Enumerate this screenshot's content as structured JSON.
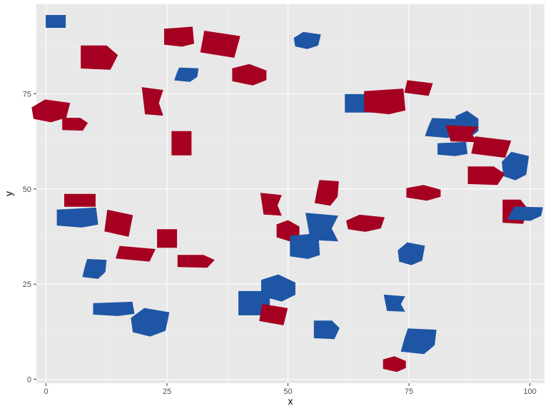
{
  "chart_data": {
    "type": "scatter",
    "marker": "us-state-shapes",
    "xlabel": "x",
    "ylabel": "y",
    "xlim": [
      -2,
      103
    ],
    "ylim": [
      -1,
      98.5
    ],
    "xticks": [
      0,
      25,
      50,
      75,
      100
    ],
    "yticks": [
      0,
      25,
      50,
      75
    ],
    "grid": true,
    "colors": {
      "red": "#a50021",
      "blue": "#1e56a5",
      "panel": "#e8e8e8",
      "grid_major": "#ffffff",
      "grid_minor": "#f3f3f3"
    },
    "points": [
      {
        "x": 2,
        "y": 94,
        "c": "blue"
      },
      {
        "x": 27.5,
        "y": 90,
        "c": "red"
      },
      {
        "x": 36,
        "y": 88,
        "c": "red"
      },
      {
        "x": 54,
        "y": 89,
        "c": "blue"
      },
      {
        "x": 11,
        "y": 84.5,
        "c": "red"
      },
      {
        "x": 29,
        "y": 80,
        "c": "blue"
      },
      {
        "x": 42,
        "y": 80,
        "c": "red"
      },
      {
        "x": 22,
        "y": 73,
        "c": "red"
      },
      {
        "x": 65,
        "y": 72.5,
        "c": "blue"
      },
      {
        "x": 70,
        "y": 73,
        "c": "red"
      },
      {
        "x": 77,
        "y": 76.5,
        "c": "red"
      },
      {
        "x": 1,
        "y": 70.5,
        "c": "red"
      },
      {
        "x": 6,
        "y": 67,
        "c": "red"
      },
      {
        "x": 82,
        "y": 66,
        "c": "blue"
      },
      {
        "x": 87,
        "y": 67,
        "c": "blue"
      },
      {
        "x": 86,
        "y": 64.5,
        "c": "red"
      },
      {
        "x": 28,
        "y": 62,
        "c": "red"
      },
      {
        "x": 84,
        "y": 60.5,
        "c": "blue"
      },
      {
        "x": 92,
        "y": 61,
        "c": "red"
      },
      {
        "x": 97,
        "y": 56,
        "c": "blue"
      },
      {
        "x": 91,
        "y": 53.5,
        "c": "red"
      },
      {
        "x": 58,
        "y": 49,
        "c": "red"
      },
      {
        "x": 78,
        "y": 49,
        "c": "red"
      },
      {
        "x": 46.5,
        "y": 46,
        "c": "red"
      },
      {
        "x": 7,
        "y": 47,
        "c": "red"
      },
      {
        "x": 6.5,
        "y": 42.5,
        "c": "blue"
      },
      {
        "x": 15,
        "y": 41,
        "c": "red"
      },
      {
        "x": 66,
        "y": 41,
        "c": "red"
      },
      {
        "x": 97,
        "y": 44,
        "c": "red"
      },
      {
        "x": 99,
        "y": 43.5,
        "c": "blue"
      },
      {
        "x": 50,
        "y": 39,
        "c": "red"
      },
      {
        "x": 57,
        "y": 40,
        "c": "blue"
      },
      {
        "x": 25,
        "y": 37,
        "c": "red"
      },
      {
        "x": 53.5,
        "y": 35,
        "c": "blue"
      },
      {
        "x": 18.5,
        "y": 33,
        "c": "red"
      },
      {
        "x": 75.5,
        "y": 33,
        "c": "blue"
      },
      {
        "x": 31,
        "y": 31,
        "c": "red"
      },
      {
        "x": 10,
        "y": 29,
        "c": "blue"
      },
      {
        "x": 48,
        "y": 24,
        "c": "blue"
      },
      {
        "x": 72,
        "y": 20,
        "c": "blue"
      },
      {
        "x": 43,
        "y": 20,
        "c": "blue"
      },
      {
        "x": 14,
        "y": 18.5,
        "c": "blue"
      },
      {
        "x": 47,
        "y": 17,
        "c": "red"
      },
      {
        "x": 21.5,
        "y": 15,
        "c": "blue"
      },
      {
        "x": 58,
        "y": 13,
        "c": "blue"
      },
      {
        "x": 77,
        "y": 10,
        "c": "blue"
      },
      {
        "x": 72,
        "y": 4,
        "c": "red"
      }
    ]
  }
}
